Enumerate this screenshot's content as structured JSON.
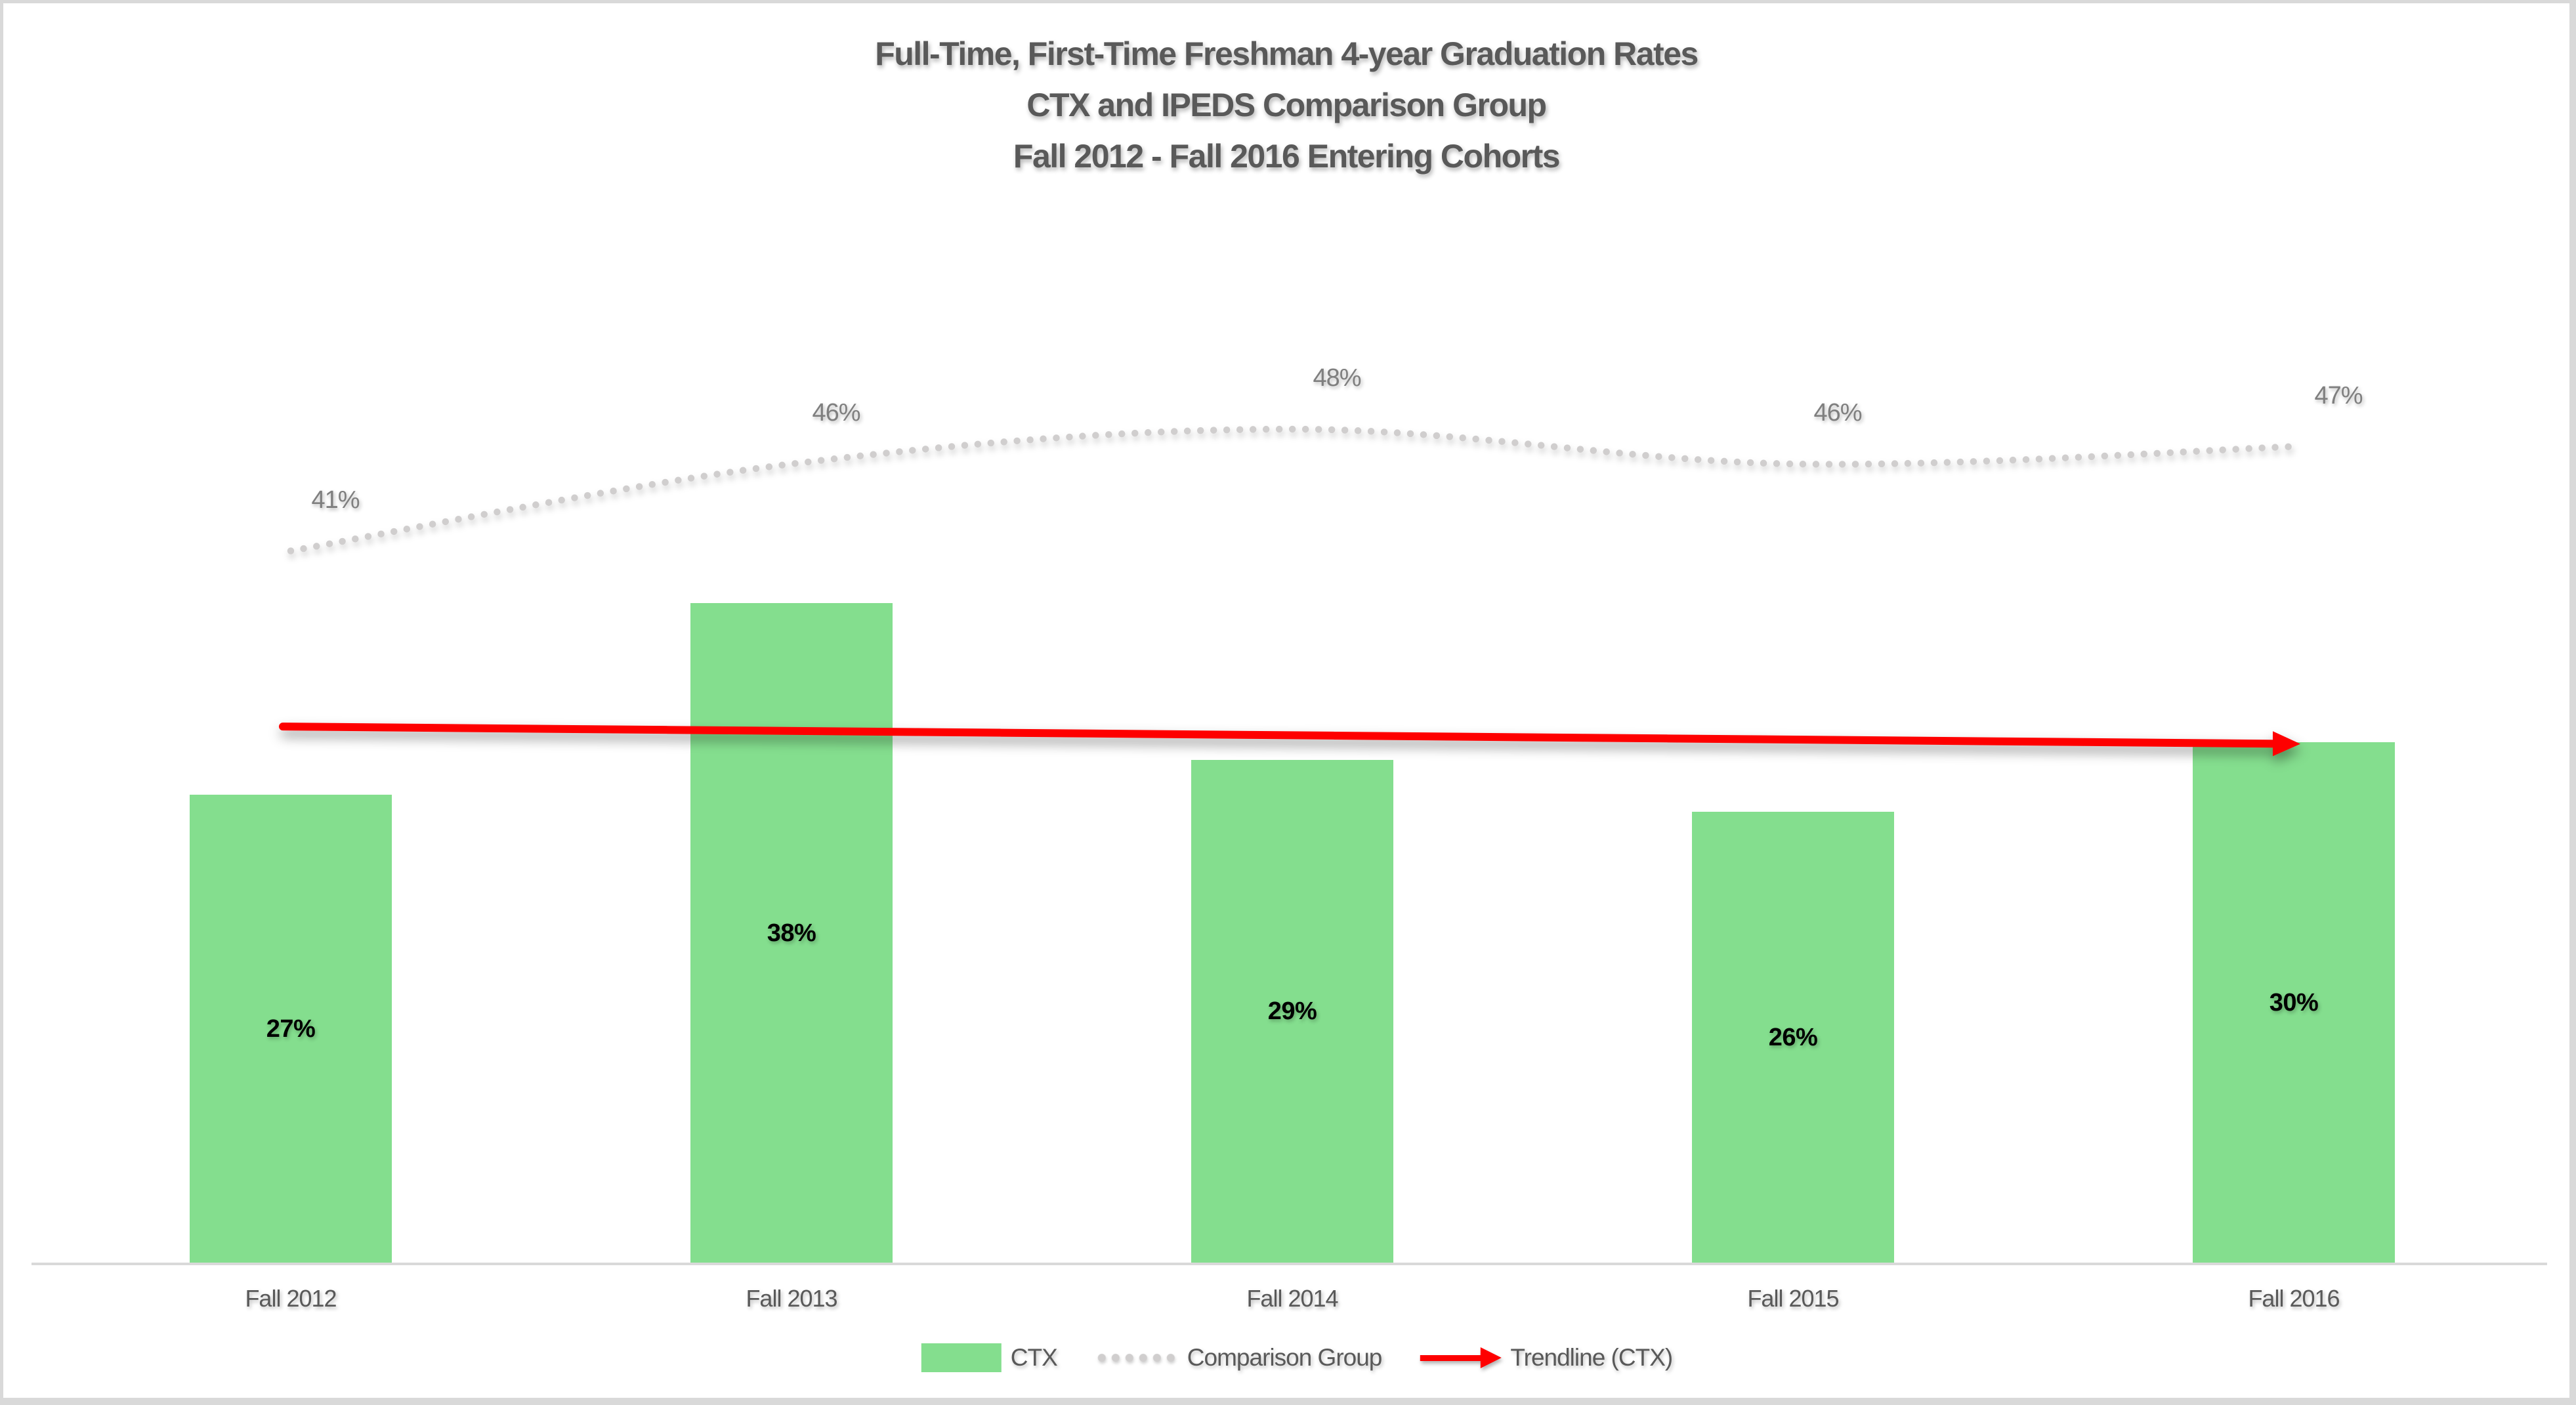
{
  "title": {
    "lines": [
      "Full-Time, First-Time Freshman 4-year Graduation Rates",
      "CTX and IPEDS Comparison Group",
      "Fall 2012 - Fall 2016 Entering Cohorts"
    ]
  },
  "chart_data": {
    "type": "bar",
    "title": "Full-Time, First-Time Freshman 4-year Graduation Rates / CTX and IPEDS Comparison Group / Fall 2012 - Fall 2016 Entering Cohorts",
    "categories": [
      "Fall 2012",
      "Fall 2013",
      "Fall 2014",
      "Fall 2015",
      "Fall 2016"
    ],
    "series": [
      {
        "name": "CTX",
        "type": "bar",
        "values": [
          27,
          38,
          29,
          26,
          30
        ],
        "data_labels": [
          "27%",
          "38%",
          "29%",
          "26%",
          "30%"
        ],
        "color": "#84DE8E",
        "label_position": "center"
      },
      {
        "name": "Comparison Group",
        "type": "dotted_line",
        "values": [
          41,
          46,
          48,
          46,
          47
        ],
        "data_labels": [
          "41%",
          "46%",
          "48%",
          "46%",
          "47%"
        ],
        "color": "#D0CECE",
        "smooth": true,
        "label_position": "above"
      },
      {
        "name": "Trendline (CTX)",
        "type": "trendline_arrow",
        "start_value": 30.9,
        "end_value": 29.9,
        "color": "#FE0000"
      }
    ],
    "value_axis": {
      "min": 0,
      "unit": "percent",
      "visible": false,
      "gridlines": false
    },
    "category_axis": {
      "visible": true,
      "line_color": "#D9D9D9"
    },
    "legend_position": "bottom"
  },
  "legend": {
    "items": [
      {
        "label": "CTX",
        "swatch": "bar",
        "color": "#84DE8E"
      },
      {
        "label": "Comparison Group",
        "swatch": "dotted-line",
        "color": "#D0CECE"
      },
      {
        "label": "Trendline (CTX)",
        "swatch": "arrow",
        "color": "#FE0000"
      }
    ]
  },
  "colors": {
    "background": "#FFFFFF",
    "border": "#D9D9D9",
    "axis_line": "#D9D9D9",
    "title_text": "#595959",
    "axis_label_text": "#595959",
    "comparison_label_text": "#7F7F7F",
    "bar_label_text": "#000000"
  }
}
